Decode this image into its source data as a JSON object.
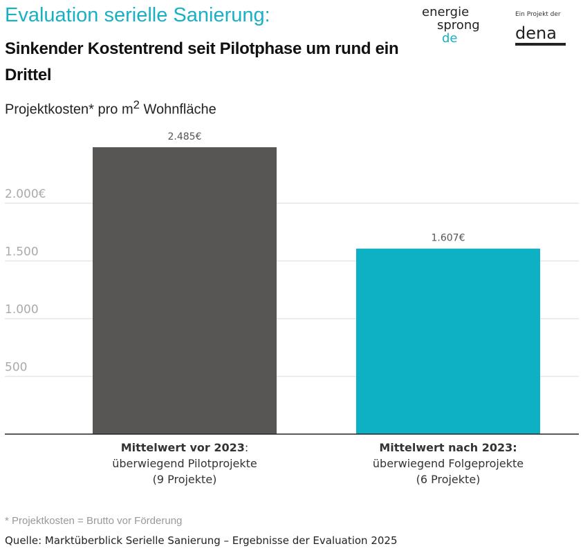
{
  "header": {
    "title": "Evaluation serielle Sanierung:",
    "subtitle": "Sinkender Kostentrend seit Pilotphase um rund ein Drittel"
  },
  "logos": {
    "energiesprong": [
      "energie",
      "sprong",
      "de"
    ],
    "dena_caption": "Ein Projekt der",
    "dena": "dena"
  },
  "chart_data": {
    "type": "bar",
    "title": "Projektkosten* pro m² Wohnfläche",
    "ylabel_prefix": "Projektkosten* pro m",
    "ylabel_sup": "2",
    "ylabel_suffix": " Wohnfläche",
    "categories": [
      {
        "bold": "Mittelwert vor 2023",
        "bold_suffix": ":",
        "line2": "überwiegend Pilotprojekte",
        "line3": "(9 Projekte)"
      },
      {
        "bold": "Mittelwert nach 2023:",
        "bold_suffix": "",
        "line2": "überwiegend Folgeprojekte",
        "line3": "(6 Projekte)"
      }
    ],
    "values": [
      2485,
      1607
    ],
    "value_labels": [
      "2.485€",
      "1.607€"
    ],
    "colors": [
      "#575655",
      "#0eb1c4"
    ],
    "yticks": [
      {
        "value": 500,
        "label": "500"
      },
      {
        "value": 1000,
        "label": "1.000"
      },
      {
        "value": 1500,
        "label": "1.500"
      },
      {
        "value": 2000,
        "label": "2.000€"
      }
    ],
    "ylim": [
      0,
      2500
    ],
    "grid": true
  },
  "footer": {
    "footnote": "* Projektkosten = Brutto vor Förderung",
    "source": "Quelle: Marktüberblick Serielle Sanierung – Ergebnisse der Evaluation 2025"
  }
}
